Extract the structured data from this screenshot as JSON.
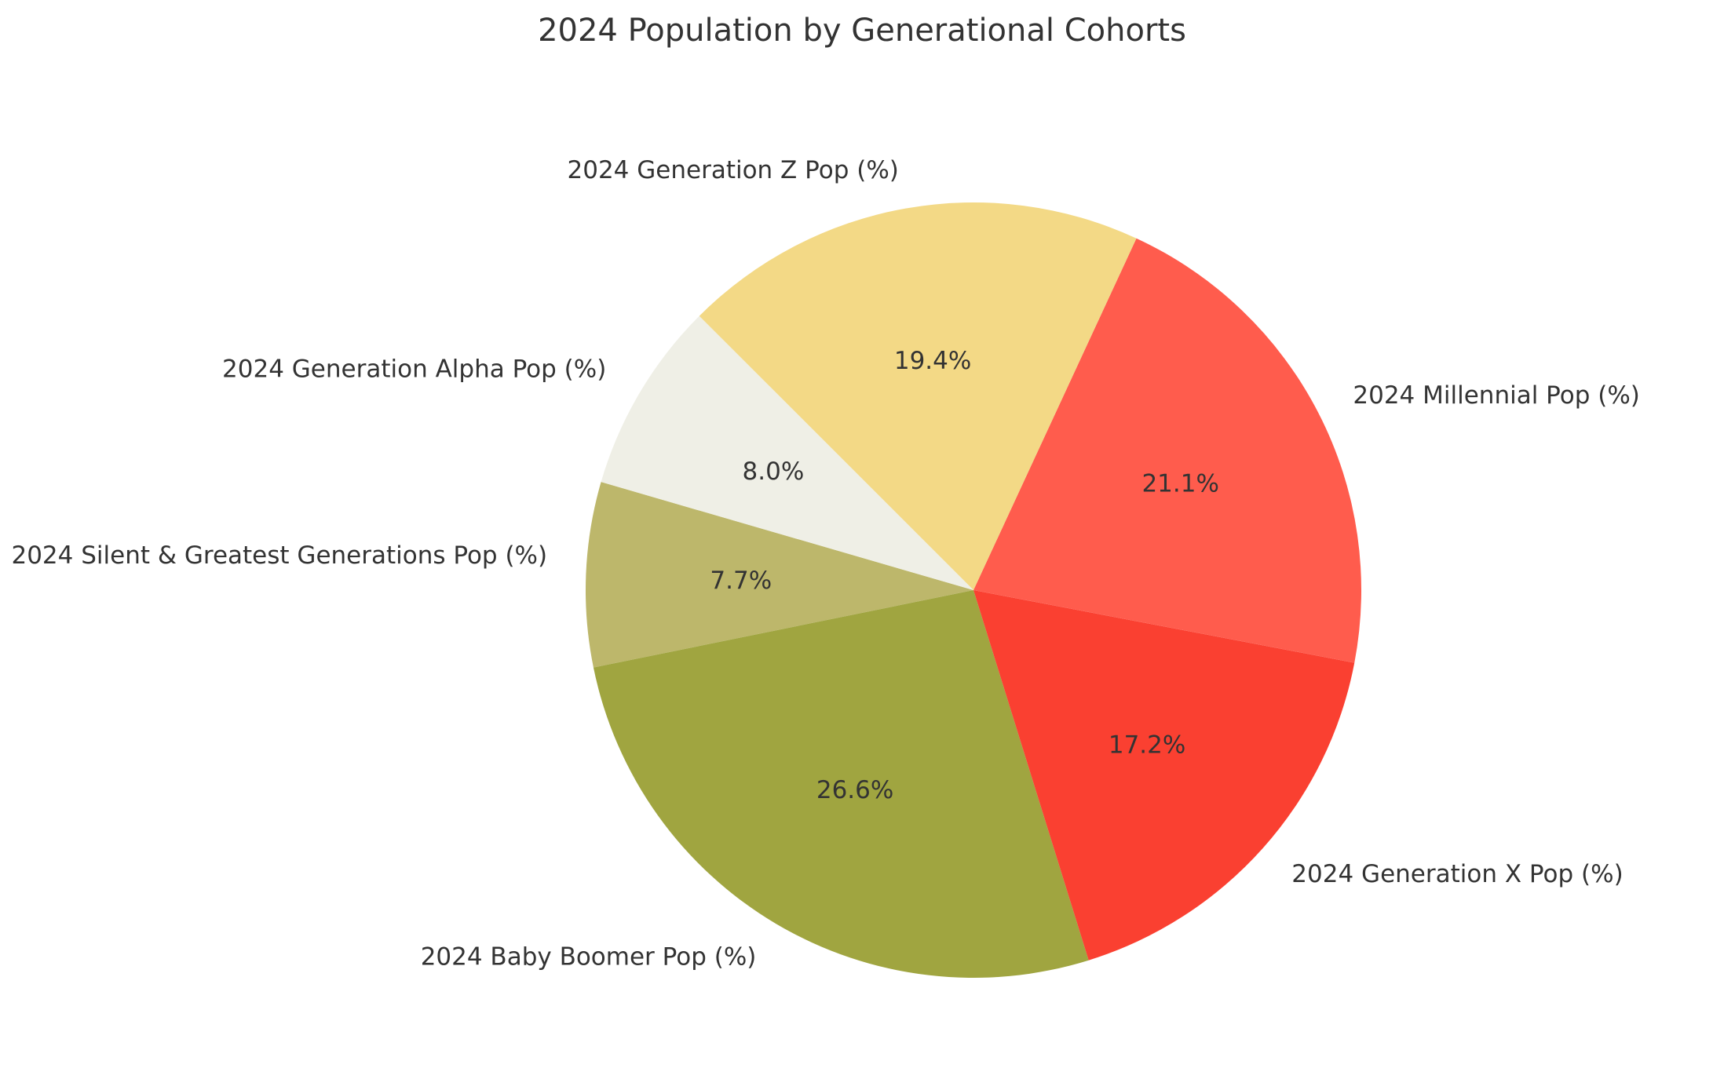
{
  "chart_data": {
    "type": "pie",
    "title": "2024 Population by Generational Cohorts",
    "start_angle_deg": 163.8,
    "direction": "counterclockwise",
    "slices": [
      {
        "label": "2024 Silent & Greatest Generations Pop (%)",
        "value": 7.7,
        "pct_label": "7.7%",
        "color": "#bdb76b"
      },
      {
        "label": "2024 Baby Boomer Pop (%)",
        "value": 26.6,
        "pct_label": "26.6%",
        "color": "#a0a540"
      },
      {
        "label": "2024 Generation X Pop (%)",
        "value": 17.2,
        "pct_label": "17.2%",
        "color": "#fa4031"
      },
      {
        "label": "2024 Millennial Pop (%)",
        "value": 21.1,
        "pct_label": "21.1%",
        "color": "#ff5c4d"
      },
      {
        "label": "2024 Generation Z Pop (%)",
        "value": 19.4,
        "pct_label": "19.4%",
        "color": "#f3d986"
      },
      {
        "label": "2024 Generation Alpha Pop (%)",
        "value": 8.0,
        "pct_label": "8.0%",
        "color": "#efefe6"
      }
    ]
  }
}
